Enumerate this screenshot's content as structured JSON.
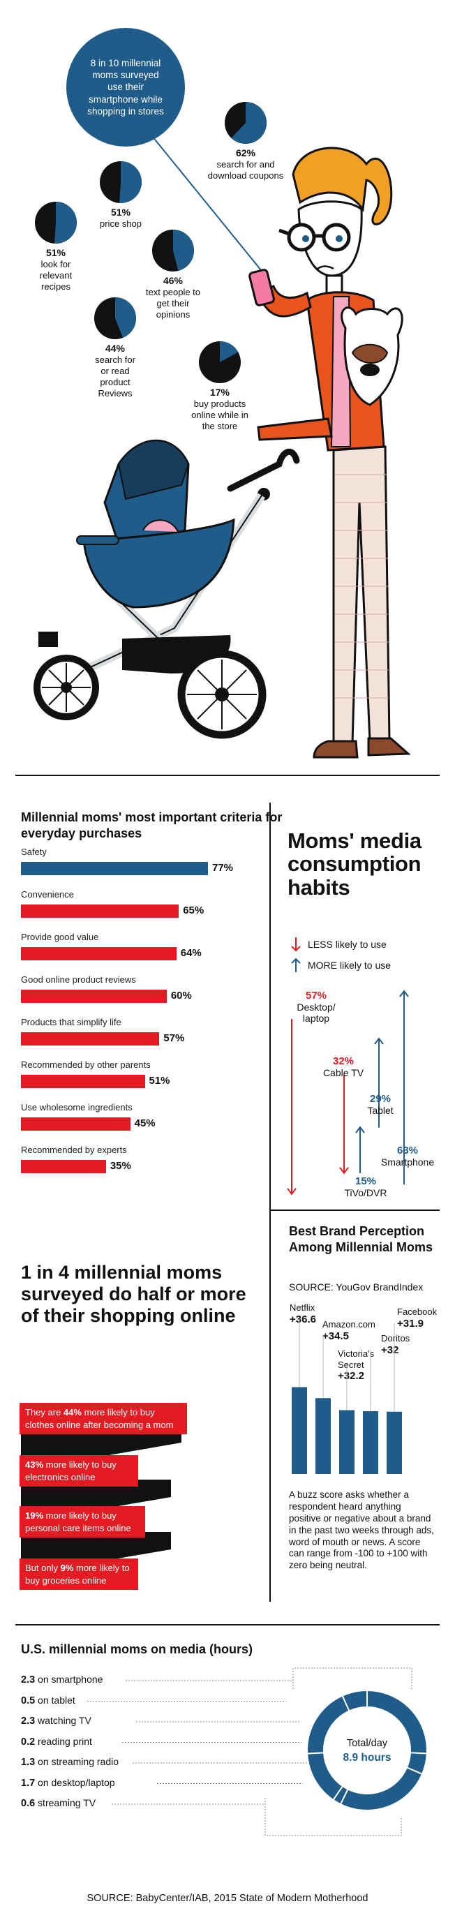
{
  "colors": {
    "blue": "#1f5c8a",
    "red": "#e31b23",
    "black": "#111111",
    "orange": "#e8541c"
  },
  "bubble_text": "8 in 10 millennial moms surveyed use their smartphone while shopping in stores",
  "phone_stats": [
    {
      "pct": "62%",
      "pct_value": 62,
      "label": "search for and download coupons"
    },
    {
      "pct": "51%",
      "pct_value": 51,
      "label": "price shop"
    },
    {
      "pct": "51%",
      "pct_value": 51,
      "label": "look for relevant recipes"
    },
    {
      "pct": "46%",
      "pct_value": 46,
      "label": "text people to get their opinions"
    },
    {
      "pct": "44%",
      "pct_value": 44,
      "label": "search for or read product Reviews"
    },
    {
      "pct": "17%",
      "pct_value": 17,
      "label": "buy products online while in the store"
    }
  ],
  "chart_data": [
    {
      "type": "bar",
      "title": "Millennial moms' most important criteria for everyday purchases",
      "categories": [
        "Safety",
        "Convenience",
        "Provide good value",
        "Good online product reviews",
        "Products that simplify life",
        "Recommended by other parents",
        "Use wholesome ingredients",
        "Recommended by experts"
      ],
      "values": [
        77,
        65,
        64,
        60,
        57,
        51,
        45,
        35
      ],
      "value_labels": [
        "77%",
        "65%",
        "64%",
        "60%",
        "57%",
        "51%",
        "45%",
        "35%"
      ]
    },
    {
      "type": "bar",
      "title": "Moms' media consumption habits",
      "legend": {
        "less": "LESS likely to use",
        "more": "MORE likely to use"
      },
      "items": [
        {
          "name": "Desktop/ laptop",
          "value": 57,
          "label": "57%",
          "direction": "less"
        },
        {
          "name": "Cable TV",
          "value": 32,
          "label": "32%",
          "direction": "less"
        },
        {
          "name": "Tablet",
          "value": 29,
          "label": "29%",
          "direction": "more"
        },
        {
          "name": "Smartphone",
          "value": 63,
          "label": "63%",
          "direction": "more"
        },
        {
          "name": "TiVo/DVR",
          "value": 15,
          "label": "15%",
          "direction": "more"
        }
      ]
    },
    {
      "type": "bar",
      "title": "Best Brand Perception Among Millennial Moms",
      "source": "SOURCE: YouGov BrandIndex",
      "categories": [
        "Netflix",
        "Amazon.com",
        "Victoria's Secret",
        "Doritos",
        "Facebook"
      ],
      "values": [
        36.6,
        34.5,
        32.2,
        32,
        31.9
      ],
      "value_labels": [
        "+36.6",
        "+34.5",
        "+32.2",
        "+32",
        "+31.9"
      ],
      "note": "A buzz score asks whether a respondent heard anything positive or negative about a brand in the past two weeks through ads, word of mouth or news. A score can range from -100 to +100 with zero being neutral."
    },
    {
      "type": "pie",
      "title": "U.S. millennial moms on media (hours)",
      "categories": [
        "on smartphone",
        "on tablet",
        "watching TV",
        "reading print",
        "on streaming radio",
        "on desktop/laptop",
        "streaming TV"
      ],
      "values": [
        2.3,
        0.5,
        2.3,
        0.2,
        1.3,
        1.7,
        0.6
      ],
      "value_labels": [
        "2.3",
        "0.5",
        "2.3",
        "0.2",
        "1.3",
        "1.7",
        "0.6"
      ],
      "center_label": "Total/day",
      "center_value": "8.9 hours"
    }
  ],
  "shopping": {
    "title": "1 in 4 millennial moms surveyed do half or more of their shopping online",
    "ribbons": [
      {
        "bold": "44%",
        "pre": "They are ",
        "post": " more likely to buy clothes online after becoming a mom"
      },
      {
        "bold": "43%",
        "pre": "",
        "post": " more likely to buy electronics online"
      },
      {
        "bold": "19%",
        "pre": "",
        "post": " more likely to buy personal care items online"
      },
      {
        "bold": "9%",
        "pre": "But only ",
        "post": " more likely to buy groceries online"
      }
    ]
  },
  "source": "SOURCE: BabyCenter/IAB, 2015 State of Modern Motherhood"
}
